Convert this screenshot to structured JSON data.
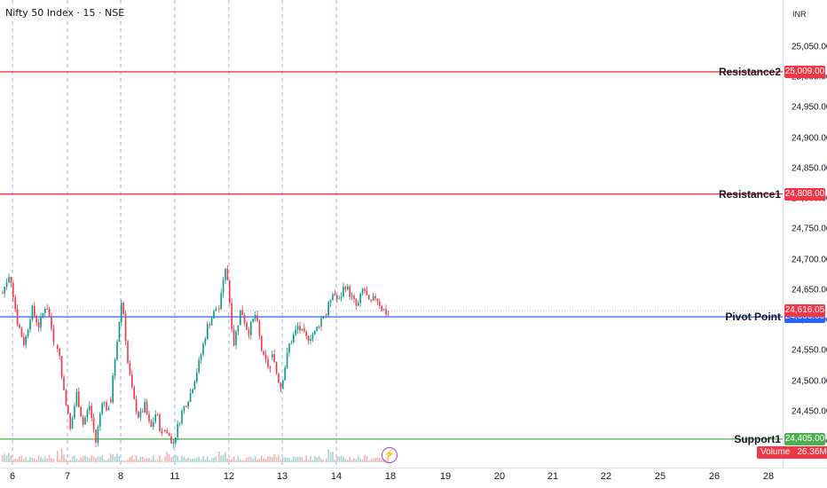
{
  "header": {
    "ticker": "Nifty 50 Index · 15 · NSE",
    "currency": "INR"
  },
  "colors": {
    "resistance": "#f23645",
    "pivot": "#2962ff",
    "support": "#4caf50",
    "up": "#089981",
    "down": "#f23645",
    "session_line": "#9db2e8",
    "volume_up": "#a5d6cf",
    "volume_down": "#f7b1b1"
  },
  "chart_data": {
    "type": "candlestick",
    "ylim": [
      24380,
      25095
    ],
    "y_ticks": [
      "25,050.00",
      "25,000.00",
      "24,950.00",
      "24,900.00",
      "24,850.00",
      "24,800.00",
      "24,750.00",
      "24,700.00",
      "24,650.00",
      "24,600.00",
      "24,550.00",
      "24,500.00",
      "24,450.00",
      "24,400.00"
    ],
    "x_labels": [
      "6",
      "7",
      "8",
      "11",
      "12",
      "13",
      "14",
      "18",
      "19",
      "20",
      "21",
      "22",
      "25",
      "26",
      "28"
    ],
    "levels": [
      {
        "name": "Resistance2",
        "value": 25009.0,
        "price_label": "25,009.00",
        "color_key": "resistance"
      },
      {
        "name": "Resistance1",
        "value": 24808.0,
        "price_label": "24,808.00",
        "color_key": "resistance"
      },
      {
        "name": "Pivot Point",
        "value": 24606.0,
        "price_label": "24,606.00",
        "color_key": "pivot"
      },
      {
        "name": "Support1",
        "value": 24405.0,
        "price_label": "24,405.00",
        "color_key": "support"
      }
    ],
    "last_price": {
      "value": 24616.05,
      "label": "24,616.05"
    },
    "volume": {
      "label": "Volume",
      "value": "26.36M"
    },
    "sessions": [
      {
        "day": "6",
        "open": 24645,
        "path": [
          24680,
          24600,
          24560,
          24620,
          24590,
          24630,
          24570
        ]
      },
      {
        "day": "7",
        "open": 24560,
        "path": [
          24490,
          24420,
          24480,
          24430,
          24460,
          24400,
          24470,
          24450
        ]
      },
      {
        "day": "8",
        "open": 24470,
        "path": [
          24560,
          24640,
          24530,
          24470,
          24440,
          24460,
          24420,
          24450,
          24410
        ]
      },
      {
        "day": "11",
        "open": 24420,
        "path": [
          24400,
          24450,
          24480,
          24530,
          24590,
          24620
        ]
      },
      {
        "day": "12",
        "open": 24620,
        "path": [
          24690,
          24560,
          24620,
          24580,
          24610,
          24540,
          24520
        ]
      },
      {
        "day": "13",
        "open": 24540,
        "path": [
          24490,
          24560,
          24590,
          24570,
          24580,
          24610
        ]
      },
      {
        "day": "14",
        "open": 24610,
        "path": [
          24650,
          24630,
          24660,
          24640,
          24620,
          24655,
          24625,
          24640,
          24620,
          24610
        ]
      }
    ]
  }
}
